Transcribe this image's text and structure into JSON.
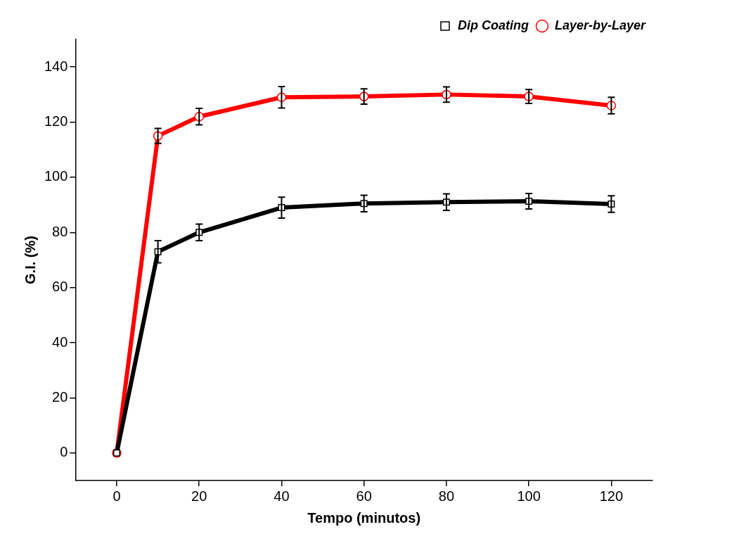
{
  "chart_data": {
    "type": "line",
    "xlabel": "Tempo (minutos)",
    "ylabel": "G.I. (%)",
    "x": [
      0,
      10,
      20,
      40,
      60,
      80,
      100,
      120
    ],
    "series": [
      {
        "name": "Dip Coating",
        "color": "#000000",
        "marker": "square",
        "values": [
          0,
          73,
          80,
          89,
          90.5,
          91,
          91.3,
          90.3
        ],
        "errors": [
          null,
          4,
          3,
          3.8,
          3,
          3,
          2.8,
          3
        ]
      },
      {
        "name": "Layer-by-Layer",
        "color": "#ff0000",
        "marker": "circle",
        "values": [
          0,
          115,
          122,
          129,
          129.3,
          130,
          129.3,
          126
        ],
        "errors": [
          null,
          2.7,
          3,
          3.9,
          2.8,
          2.8,
          2.5,
          3
        ]
      }
    ],
    "xlim": [
      -10,
      130
    ],
    "xticks": [
      0,
      20,
      40,
      60,
      80,
      100,
      120
    ],
    "ylim": [
      -10,
      150
    ],
    "yticks": [
      0,
      20,
      40,
      60,
      80,
      100,
      120,
      140
    ],
    "grid": false,
    "legend": "top right",
    "line_style": "solid"
  }
}
